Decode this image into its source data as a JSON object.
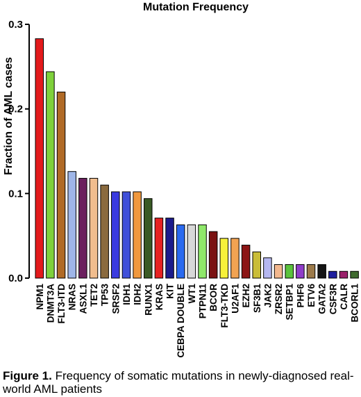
{
  "chart_data": {
    "type": "bar",
    "title": "Mutation Frequency",
    "xlabel": "",
    "ylabel": "Fraction of AML cases",
    "ylim": [
      0,
      0.3
    ],
    "yticks": [
      "0.0",
      "0.1",
      "0.2",
      "0.3"
    ],
    "grid": false,
    "categories": [
      "NPM1",
      "DNMT3A",
      "FLT3-ITD",
      "NRAS",
      "ASXL1",
      "TET2",
      "TP53",
      "SRSF2",
      "IDH1",
      "IDH2",
      "RUNX1",
      "KRAS",
      "KIT",
      "CEBPA DOUBLE",
      "WT1",
      "PTPN11",
      "BCOR",
      "FLT3-TKD",
      "U2AF1",
      "EZH2",
      "SF3B1",
      "JAK2",
      "ZRSR2",
      "SETBP1",
      "PHF6",
      "ETV6",
      "GATA2",
      "CSF3R",
      "CALR",
      "BCORL1"
    ],
    "values": [
      0.283,
      0.244,
      0.22,
      0.126,
      0.118,
      0.118,
      0.11,
      0.102,
      0.102,
      0.102,
      0.094,
      0.071,
      0.071,
      0.063,
      0.063,
      0.063,
      0.055,
      0.047,
      0.047,
      0.039,
      0.031,
      0.024,
      0.016,
      0.016,
      0.016,
      0.016,
      0.016,
      0.008,
      0.008,
      0.008
    ],
    "colors": [
      "#e31a1c",
      "#7fd13b",
      "#b06a26",
      "#9fb6e8",
      "#6b1f5e",
      "#f1bd8e",
      "#8a6a3e",
      "#3b3be0",
      "#3f4fd9",
      "#f0983d",
      "#3a5a25",
      "#e62222",
      "#1c1c8c",
      "#2b6af0",
      "#d8d8d8",
      "#8fe86a",
      "#7a1212",
      "#f7f13a",
      "#f2a352",
      "#8c1515",
      "#c9bd38",
      "#b5b7f0",
      "#f2b78e",
      "#5bc23d",
      "#8f3dc9",
      "#9c7a4a",
      "#151515",
      "#1f1f9e",
      "#9a1f6a",
      "#3f6a2f"
    ]
  },
  "caption": {
    "label": "Figure 1.",
    "text": " Frequency of somatic mutations in newly-diagnosed real-world AML patients"
  }
}
